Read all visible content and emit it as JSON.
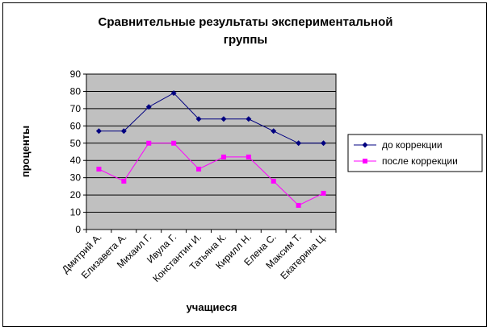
{
  "chart_data": {
    "type": "line",
    "title_lines": [
      "Сравнительные результаты экспериментальной",
      "группы"
    ],
    "xlabel": "учащиеся",
    "ylabel": "проценты",
    "categories": [
      "Дмитрий А.",
      "Елизавета А.",
      "Михаил Г.",
      "Ивула Г.",
      "Константин И.",
      "Татьяна К.",
      "Кирилл Н.",
      "Елена С.",
      "Максим Т.",
      "Екатерина Ц."
    ],
    "y_ticks": [
      "0",
      "10",
      "20",
      "30",
      "40",
      "50",
      "60",
      "70",
      "80",
      "90"
    ],
    "ylim": [
      0,
      90
    ],
    "grid": true,
    "legend_position": "right",
    "plot_background": "#c0c0c0",
    "series": [
      {
        "name": "до коррекции",
        "color": "#000080",
        "marker": "diamond",
        "values": [
          57,
          57,
          71,
          79,
          64,
          64,
          64,
          57,
          50,
          50
        ]
      },
      {
        "name": "после коррекции",
        "color": "#ff00ff",
        "marker": "square",
        "values": [
          35,
          28,
          50,
          50,
          35,
          42,
          42,
          28,
          14,
          21
        ]
      }
    ]
  }
}
